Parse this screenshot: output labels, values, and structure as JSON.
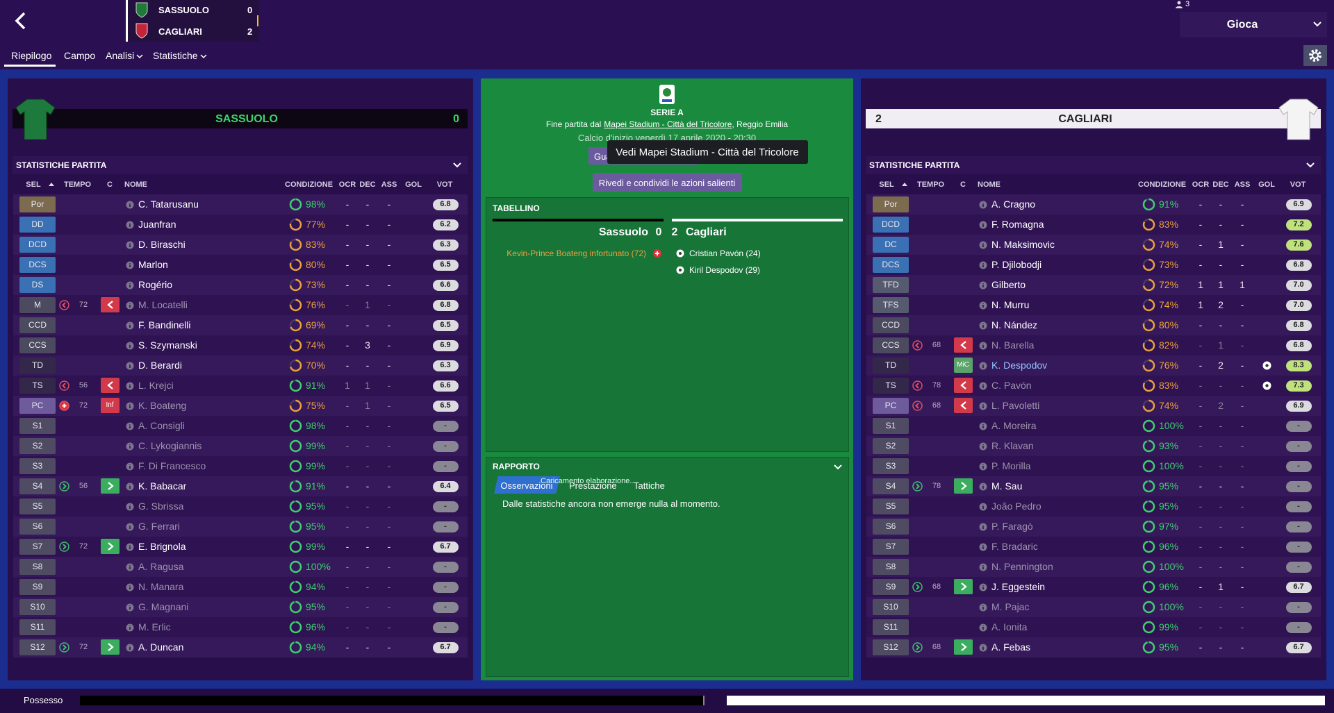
{
  "header": {
    "scoreboard": [
      {
        "name": "SASSUOLO",
        "score": 0
      },
      {
        "name": "CAGLIARI",
        "score": 2
      }
    ],
    "user_count": 3,
    "play_button": "Gioca",
    "tabs": [
      "Riepilogo",
      "Campo",
      "Analisi",
      "Statistiche"
    ]
  },
  "teams": [
    {
      "banner": {
        "name": "SASSUOLO",
        "score": 0
      },
      "section": "STATISTICHE PARTITA",
      "columns": [
        "SEL",
        "TEMPO",
        "C",
        "NOME",
        "CONDIZIONE",
        "OCR",
        "DEC",
        "ASS",
        "GOL",
        "VOT"
      ],
      "rows": [
        [
          "Por",
          null,
          null,
          null,
          "C. Tatarusanu",
          "98%",
          "-",
          "-",
          "-",
          null,
          "6.8"
        ],
        [
          "DD",
          null,
          null,
          null,
          "Juanfran",
          "77%",
          "-",
          "-",
          "-",
          null,
          "6.2"
        ],
        [
          "DCD",
          null,
          null,
          null,
          "D. Biraschi",
          "83%",
          "-",
          "-",
          "-",
          null,
          "6.3"
        ],
        [
          "DCS",
          null,
          null,
          null,
          "Marlon",
          "80%",
          "-",
          "-",
          "-",
          null,
          "6.5"
        ],
        [
          "DS",
          null,
          null,
          null,
          "Rogério",
          "73%",
          "-",
          "-",
          "-",
          null,
          "6.6"
        ],
        [
          "M",
          72,
          "out",
          null,
          "M. Locatelli",
          "76%",
          "-",
          1,
          "-",
          null,
          "6.8"
        ],
        [
          "CCD",
          null,
          null,
          null,
          "F. Bandinelli",
          "69%",
          "-",
          "-",
          "-",
          null,
          "6.5"
        ],
        [
          "CCS",
          null,
          null,
          null,
          "S. Szymanski",
          "74%",
          "-",
          3,
          "-",
          null,
          "6.9"
        ],
        [
          "TD",
          null,
          null,
          null,
          "D. Berardi",
          "70%",
          "-",
          "-",
          "-",
          null,
          "6.3"
        ],
        [
          "TS",
          56,
          "out",
          null,
          "L. Krejci",
          "91%",
          1,
          1,
          "-",
          null,
          "6.6"
        ],
        [
          "PC",
          72,
          "injury",
          "Inf",
          "K. Boateng",
          "75%",
          "-",
          1,
          "-",
          null,
          "6.5"
        ],
        [
          "S1",
          null,
          null,
          null,
          "A. Consigli",
          "98%",
          "-",
          "-",
          "-",
          null,
          "-"
        ],
        [
          "S2",
          null,
          null,
          null,
          "C. Lykogiannis",
          "99%",
          "-",
          "-",
          "-",
          null,
          "-"
        ],
        [
          "S3",
          null,
          null,
          null,
          "F. Di Francesco",
          "99%",
          "-",
          "-",
          "-",
          null,
          "-"
        ],
        [
          "S4",
          56,
          "in",
          null,
          "K. Babacar",
          "91%",
          "-",
          "-",
          "-",
          null,
          "6.4"
        ],
        [
          "S5",
          null,
          null,
          null,
          "G. Sbrissa",
          "95%",
          "-",
          "-",
          "-",
          null,
          "-"
        ],
        [
          "S6",
          null,
          null,
          null,
          "G. Ferrari",
          "95%",
          "-",
          "-",
          "-",
          null,
          "-"
        ],
        [
          "S7",
          72,
          "in",
          null,
          "E. Brignola",
          "99%",
          "-",
          "-",
          "-",
          null,
          "6.7"
        ],
        [
          "S8",
          null,
          null,
          null,
          "A. Ragusa",
          "100%",
          "-",
          "-",
          "-",
          null,
          "-"
        ],
        [
          "S9",
          null,
          null,
          null,
          "N. Manara",
          "94%",
          "-",
          "-",
          "-",
          null,
          "-"
        ],
        [
          "S10",
          null,
          null,
          null,
          "G. Magnani",
          "95%",
          "-",
          "-",
          "-",
          null,
          "-"
        ],
        [
          "S11",
          null,
          null,
          null,
          "M. Erlic",
          "96%",
          "-",
          "-",
          "-",
          null,
          "-"
        ],
        [
          "S12",
          72,
          "in",
          null,
          "A. Duncan",
          "94%",
          "-",
          "-",
          "-",
          null,
          "6.7"
        ]
      ]
    },
    {
      "banner": {
        "name": "CAGLIARI",
        "score": 2
      },
      "section": "STATISTICHE PARTITA",
      "columns": [
        "SEL",
        "TEMPO",
        "C",
        "NOME",
        "CONDIZIONE",
        "OCR",
        "DEC",
        "ASS",
        "GOL",
        "VOT"
      ],
      "rows": [
        [
          "Por",
          null,
          null,
          null,
          "A. Cragno",
          "91%",
          "-",
          "-",
          "-",
          null,
          "6.9"
        ],
        [
          "DCD",
          null,
          null,
          null,
          "F. Romagna",
          "83%",
          "-",
          "-",
          "-",
          null,
          "7.2"
        ],
        [
          "DC",
          null,
          null,
          null,
          "N. Maksimovic",
          "74%",
          "-",
          1,
          "-",
          null,
          "7.6"
        ],
        [
          "DCS",
          null,
          null,
          null,
          "P. Djilobodji",
          "73%",
          "-",
          "-",
          "-",
          null,
          "6.8"
        ],
        [
          "TFD",
          null,
          null,
          null,
          "Gilberto",
          "72%",
          1,
          1,
          1,
          null,
          "7.0"
        ],
        [
          "TFS",
          null,
          null,
          null,
          "N. Murru",
          "74%",
          1,
          2,
          "-",
          null,
          "7.0"
        ],
        [
          "CCD",
          null,
          null,
          null,
          "N. Nández",
          "80%",
          "-",
          "-",
          "-",
          null,
          "6.8"
        ],
        [
          "CCS",
          68,
          "out",
          null,
          "N. Barella",
          "82%",
          "-",
          1,
          "-",
          null,
          "6.8"
        ],
        [
          "TD",
          null,
          null,
          "MiC",
          "K. Despodov",
          "76%",
          "-",
          2,
          "-",
          1,
          "8.3"
        ],
        [
          "TS",
          78,
          "out",
          null,
          "C. Pavón",
          "83%",
          "-",
          "-",
          "-",
          1,
          "7.3"
        ],
        [
          "PC",
          68,
          "out",
          null,
          "L. Pavoletti",
          "74%",
          "-",
          2,
          "-",
          null,
          "6.9"
        ],
        [
          "S1",
          null,
          null,
          null,
          "A. Moreira",
          "100%",
          "-",
          "-",
          "-",
          null,
          "-"
        ],
        [
          "S2",
          null,
          null,
          null,
          "R. Klavan",
          "93%",
          "-",
          "-",
          "-",
          null,
          "-"
        ],
        [
          "S3",
          null,
          null,
          null,
          "P. Morilla",
          "100%",
          "-",
          "-",
          "-",
          null,
          "-"
        ],
        [
          "S4",
          78,
          "in",
          null,
          "M. Sau",
          "95%",
          "-",
          "-",
          "-",
          null,
          "-"
        ],
        [
          "S5",
          null,
          null,
          null,
          "João Pedro",
          "95%",
          "-",
          "-",
          "-",
          null,
          "-"
        ],
        [
          "S6",
          null,
          null,
          null,
          "P. Faragò",
          "97%",
          "-",
          "-",
          "-",
          null,
          "-"
        ],
        [
          "S7",
          null,
          null,
          null,
          "F. Bradaric",
          "96%",
          "-",
          "-",
          "-",
          null,
          "-"
        ],
        [
          "S8",
          null,
          null,
          null,
          "N. Pennington",
          "100%",
          "-",
          "-",
          "-",
          null,
          "-"
        ],
        [
          "S9",
          68,
          "in",
          null,
          "J. Eggestein",
          "96%",
          "-",
          1,
          "-",
          null,
          "6.7"
        ],
        [
          "S10",
          null,
          null,
          null,
          "M. Pajac",
          "100%",
          "-",
          "-",
          "-",
          null,
          "-"
        ],
        [
          "S11",
          null,
          null,
          null,
          "A. Ionita",
          "99%",
          "-",
          "-",
          "-",
          null,
          "-"
        ],
        [
          "S12",
          68,
          "in",
          null,
          "A. Febas",
          "95%",
          "-",
          "-",
          "-",
          null,
          "6.7"
        ]
      ]
    }
  ],
  "match": {
    "competition": "SERIE A",
    "venue_line": {
      "prefix": "Fine partita dal",
      "venue": "Mapei Stadium - Città del Tricolore",
      "suffix": ", Reggio Emilia"
    },
    "kickoff": "Calcio d'inizio venerdì 17 aprile 2020 - 20:30",
    "watch_button": "Guarda la partita",
    "tooltip": "Vedi Mapei Stadium - Città del Tricolore",
    "highlights_button": "Rivedi e condividi le azioni salienti",
    "tabellino": {
      "title": "TABELLINO",
      "home": {
        "name": "Sassuolo",
        "score": 0
      },
      "away": {
        "name": "Cagliari",
        "score": 2
      },
      "home_events": [
        "Kevin-Prince Boateng infortunato (72)"
      ],
      "away_events": [
        "Cristian Pavón (24)",
        "Kiril Despodov (29)"
      ]
    },
    "rapporto": {
      "title": "RAPPORTO",
      "tabs": [
        "Osservazioni",
        "Prestazione",
        "Tattiche"
      ],
      "overlay": "Caricamento elaborazione...",
      "text": "Dalle statistiche ancora non emerge nulla al momento."
    }
  },
  "possession": {
    "label": "Possesso",
    "values": [
      51,
      49
    ]
  }
}
